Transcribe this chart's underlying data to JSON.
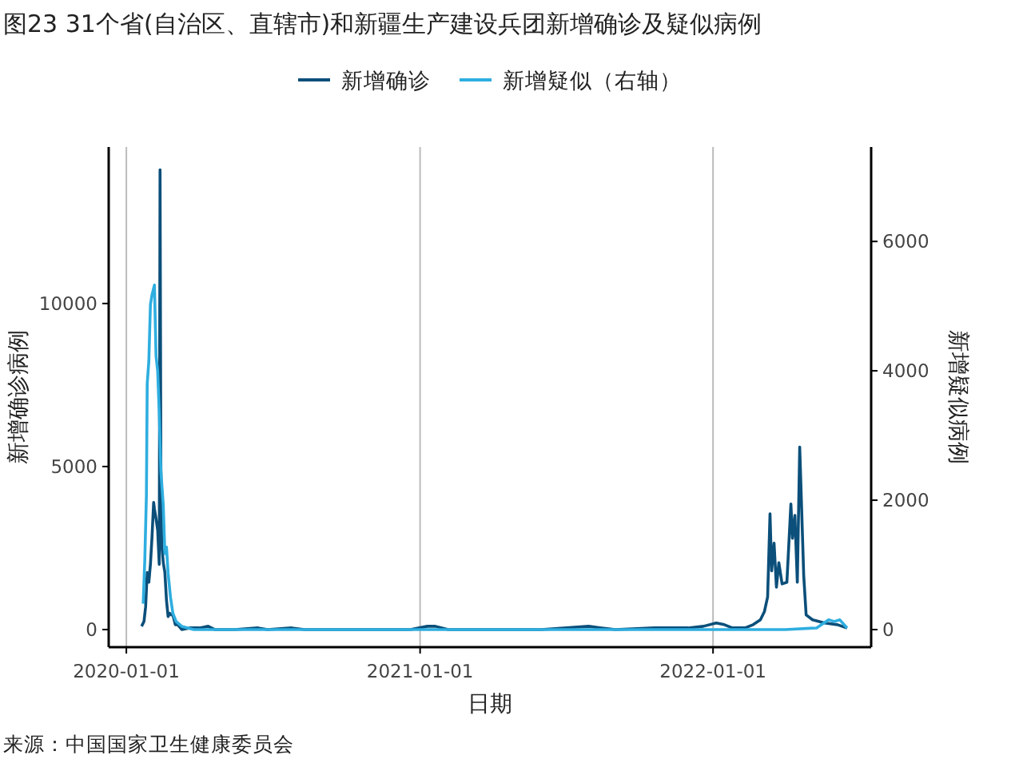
{
  "chart_data": {
    "type": "line",
    "title": "图23 31个省(自治区、直辖市)和新疆生产建设兵团新增确诊及疑似病例",
    "xlabel": "日期",
    "ylabel": "新增确诊病例",
    "y2label": "新增疑似病例",
    "annotations": [
      "来源：中国国家卫生健康委员会"
    ],
    "xlim": [
      "2019-12-10",
      "2022-07-17"
    ],
    "xticks": [
      {
        "value": "2020-01-01",
        "label": "2020-01-01"
      },
      {
        "value": "2021-01-01",
        "label": "2021-01-01"
      },
      {
        "value": "2022-01-01",
        "label": "2022-01-01"
      }
    ],
    "ylim": [
      -540,
      14800
    ],
    "yticks": [
      0,
      5000,
      10000
    ],
    "y2lim": [
      -272,
      7460
    ],
    "y2ticks": [
      0,
      2000,
      4000,
      6000
    ],
    "grid": "x",
    "legend": "top",
    "series": [
      {
        "name": "新增确诊",
        "color": "#0b4f7a",
        "x": [
          "2020-01-20",
          "2020-01-23",
          "2020-01-25",
          "2020-01-27",
          "2020-01-29",
          "2020-01-31",
          "2020-02-02",
          "2020-02-04",
          "2020-02-05",
          "2020-02-07",
          "2020-02-09",
          "2020-02-11",
          "2020-02-12",
          "2020-02-13",
          "2020-02-14",
          "2020-02-16",
          "2020-02-18",
          "2020-02-20",
          "2020-02-22",
          "2020-02-24",
          "2020-02-26",
          "2020-02-28",
          "2020-03-02",
          "2020-03-05",
          "2020-03-10",
          "2020-03-20",
          "2020-04-01",
          "2020-04-12",
          "2020-04-20",
          "2020-05-15",
          "2020-06-13",
          "2020-06-25",
          "2020-07-25",
          "2020-08-10",
          "2020-09-15",
          "2020-10-15",
          "2020-11-20",
          "2020-12-20",
          "2021-01-10",
          "2021-01-20",
          "2021-02-05",
          "2021-03-10",
          "2021-05-01",
          "2021-06-01",
          "2021-07-30",
          "2021-08-15",
          "2021-09-01",
          "2021-10-20",
          "2021-11-05",
          "2021-12-01",
          "2021-12-20",
          "2022-01-05",
          "2022-01-15",
          "2022-01-25",
          "2022-02-10",
          "2022-02-20",
          "2022-03-01",
          "2022-03-06",
          "2022-03-10",
          "2022-03-13",
          "2022-03-15",
          "2022-03-18",
          "2022-03-21",
          "2022-03-24",
          "2022-03-28",
          "2022-04-03",
          "2022-04-08",
          "2022-04-10",
          "2022-04-13",
          "2022-04-16",
          "2022-04-19",
          "2022-04-24",
          "2022-04-27",
          "2022-05-05",
          "2022-05-20",
          "2022-06-05",
          "2022-06-17"
        ],
        "values": [
          100,
          250,
          700,
          1750,
          1450,
          2000,
          2850,
          3900,
          3700,
          3400,
          3050,
          2000,
          14100,
          5100,
          2650,
          2050,
          1750,
          900,
          400,
          500,
          450,
          450,
          150,
          150,
          0,
          50,
          50,
          100,
          0,
          0,
          50,
          0,
          50,
          0,
          0,
          0,
          0,
          0,
          100,
          100,
          0,
          0,
          0,
          0,
          100,
          50,
          0,
          50,
          50,
          50,
          100,
          200,
          150,
          50,
          50,
          150,
          300,
          550,
          1000,
          3550,
          1800,
          2650,
          1300,
          2050,
          1400,
          1450,
          3850,
          2800,
          3500,
          1450,
          5600,
          1650,
          450,
          300,
          200,
          150,
          50
        ]
      },
      {
        "name": "新增疑似（右轴）",
        "color": "#2eaee0",
        "axis": "y2",
        "x": [
          "2020-01-22",
          "2020-01-24",
          "2020-01-26",
          "2020-01-27",
          "2020-01-29",
          "2020-01-31",
          "2020-02-02",
          "2020-02-05",
          "2020-02-07",
          "2020-02-09",
          "2020-02-11",
          "2020-02-13",
          "2020-02-16",
          "2020-02-18",
          "2020-02-20",
          "2020-02-22",
          "2020-02-25",
          "2020-02-28",
          "2020-03-03",
          "2020-03-10",
          "2020-03-25",
          "2020-05-01",
          "2020-09-01",
          "2021-01-15",
          "2021-06-01",
          "2022-01-01",
          "2022-04-01",
          "2022-05-10",
          "2022-05-25",
          "2022-06-01",
          "2022-06-08",
          "2022-06-17"
        ],
        "values": [
          400,
          1075,
          2075,
          3800,
          4150,
          5025,
          5175,
          5325,
          4225,
          4000,
          3350,
          2450,
          1925,
          1175,
          1275,
          875,
          500,
          250,
          125,
          50,
          0,
          0,
          0,
          0,
          0,
          0,
          0,
          25,
          150,
          125,
          150,
          25
        ]
      }
    ]
  }
}
